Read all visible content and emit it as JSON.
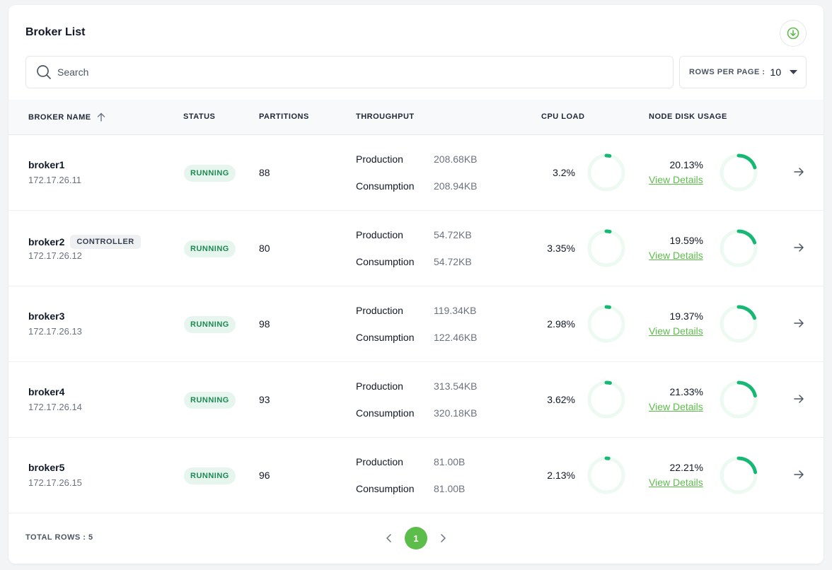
{
  "title": "Broker List",
  "search": {
    "placeholder": "Search"
  },
  "rows_per_page": {
    "label": "ROWS PER PAGE :",
    "value": "10"
  },
  "columns": {
    "broker_name": "BROKER NAME",
    "status": "STATUS",
    "partitions": "PARTITIONS",
    "throughput": "THROUGHPUT",
    "cpu_load": "CPU LOAD",
    "node_disk_usage": "NODE DISK USAGE"
  },
  "labels": {
    "production": "Production",
    "consumption": "Consumption",
    "view_details": "View Details"
  },
  "colors": {
    "accent": "#5cbd4a",
    "ring_track": "#ecfaf2",
    "ring_fill": "#16b874"
  },
  "icons": {
    "download": "download-circle-icon",
    "search": "search-icon",
    "sort": "arrow-up-icon",
    "caret": "caret-down-icon",
    "row_arrow": "arrow-right-icon",
    "prev": "chevron-left-icon",
    "next": "chevron-right-icon"
  },
  "brokers": [
    {
      "name": "broker1",
      "badge": "",
      "ip": "172.17.26.11",
      "status": "RUNNING",
      "partitions": "88",
      "production": "208.68KB",
      "consumption": "208.94KB",
      "cpu": "3.2%",
      "cpu_fraction": 0.032,
      "disk": "20.13%",
      "disk_fraction": 0.2013
    },
    {
      "name": "broker2",
      "badge": "CONTROLLER",
      "ip": "172.17.26.12",
      "status": "RUNNING",
      "partitions": "80",
      "production": "54.72KB",
      "consumption": "54.72KB",
      "cpu": "3.35%",
      "cpu_fraction": 0.0335,
      "disk": "19.59%",
      "disk_fraction": 0.1959
    },
    {
      "name": "broker3",
      "badge": "",
      "ip": "172.17.26.13",
      "status": "RUNNING",
      "partitions": "98",
      "production": "119.34KB",
      "consumption": "122.46KB",
      "cpu": "2.98%",
      "cpu_fraction": 0.0298,
      "disk": "19.37%",
      "disk_fraction": 0.1937
    },
    {
      "name": "broker4",
      "badge": "",
      "ip": "172.17.26.14",
      "status": "RUNNING",
      "partitions": "93",
      "production": "313.54KB",
      "consumption": "320.18KB",
      "cpu": "3.62%",
      "cpu_fraction": 0.0362,
      "disk": "21.33%",
      "disk_fraction": 0.2133
    },
    {
      "name": "broker5",
      "badge": "",
      "ip": "172.17.26.15",
      "status": "RUNNING",
      "partitions": "96",
      "production": "81.00B",
      "consumption": "81.00B",
      "cpu": "2.13%",
      "cpu_fraction": 0.0213,
      "disk": "22.21%",
      "disk_fraction": 0.2221
    }
  ],
  "footer": {
    "total_rows": "TOTAL ROWS : 5",
    "current_page": "1"
  }
}
